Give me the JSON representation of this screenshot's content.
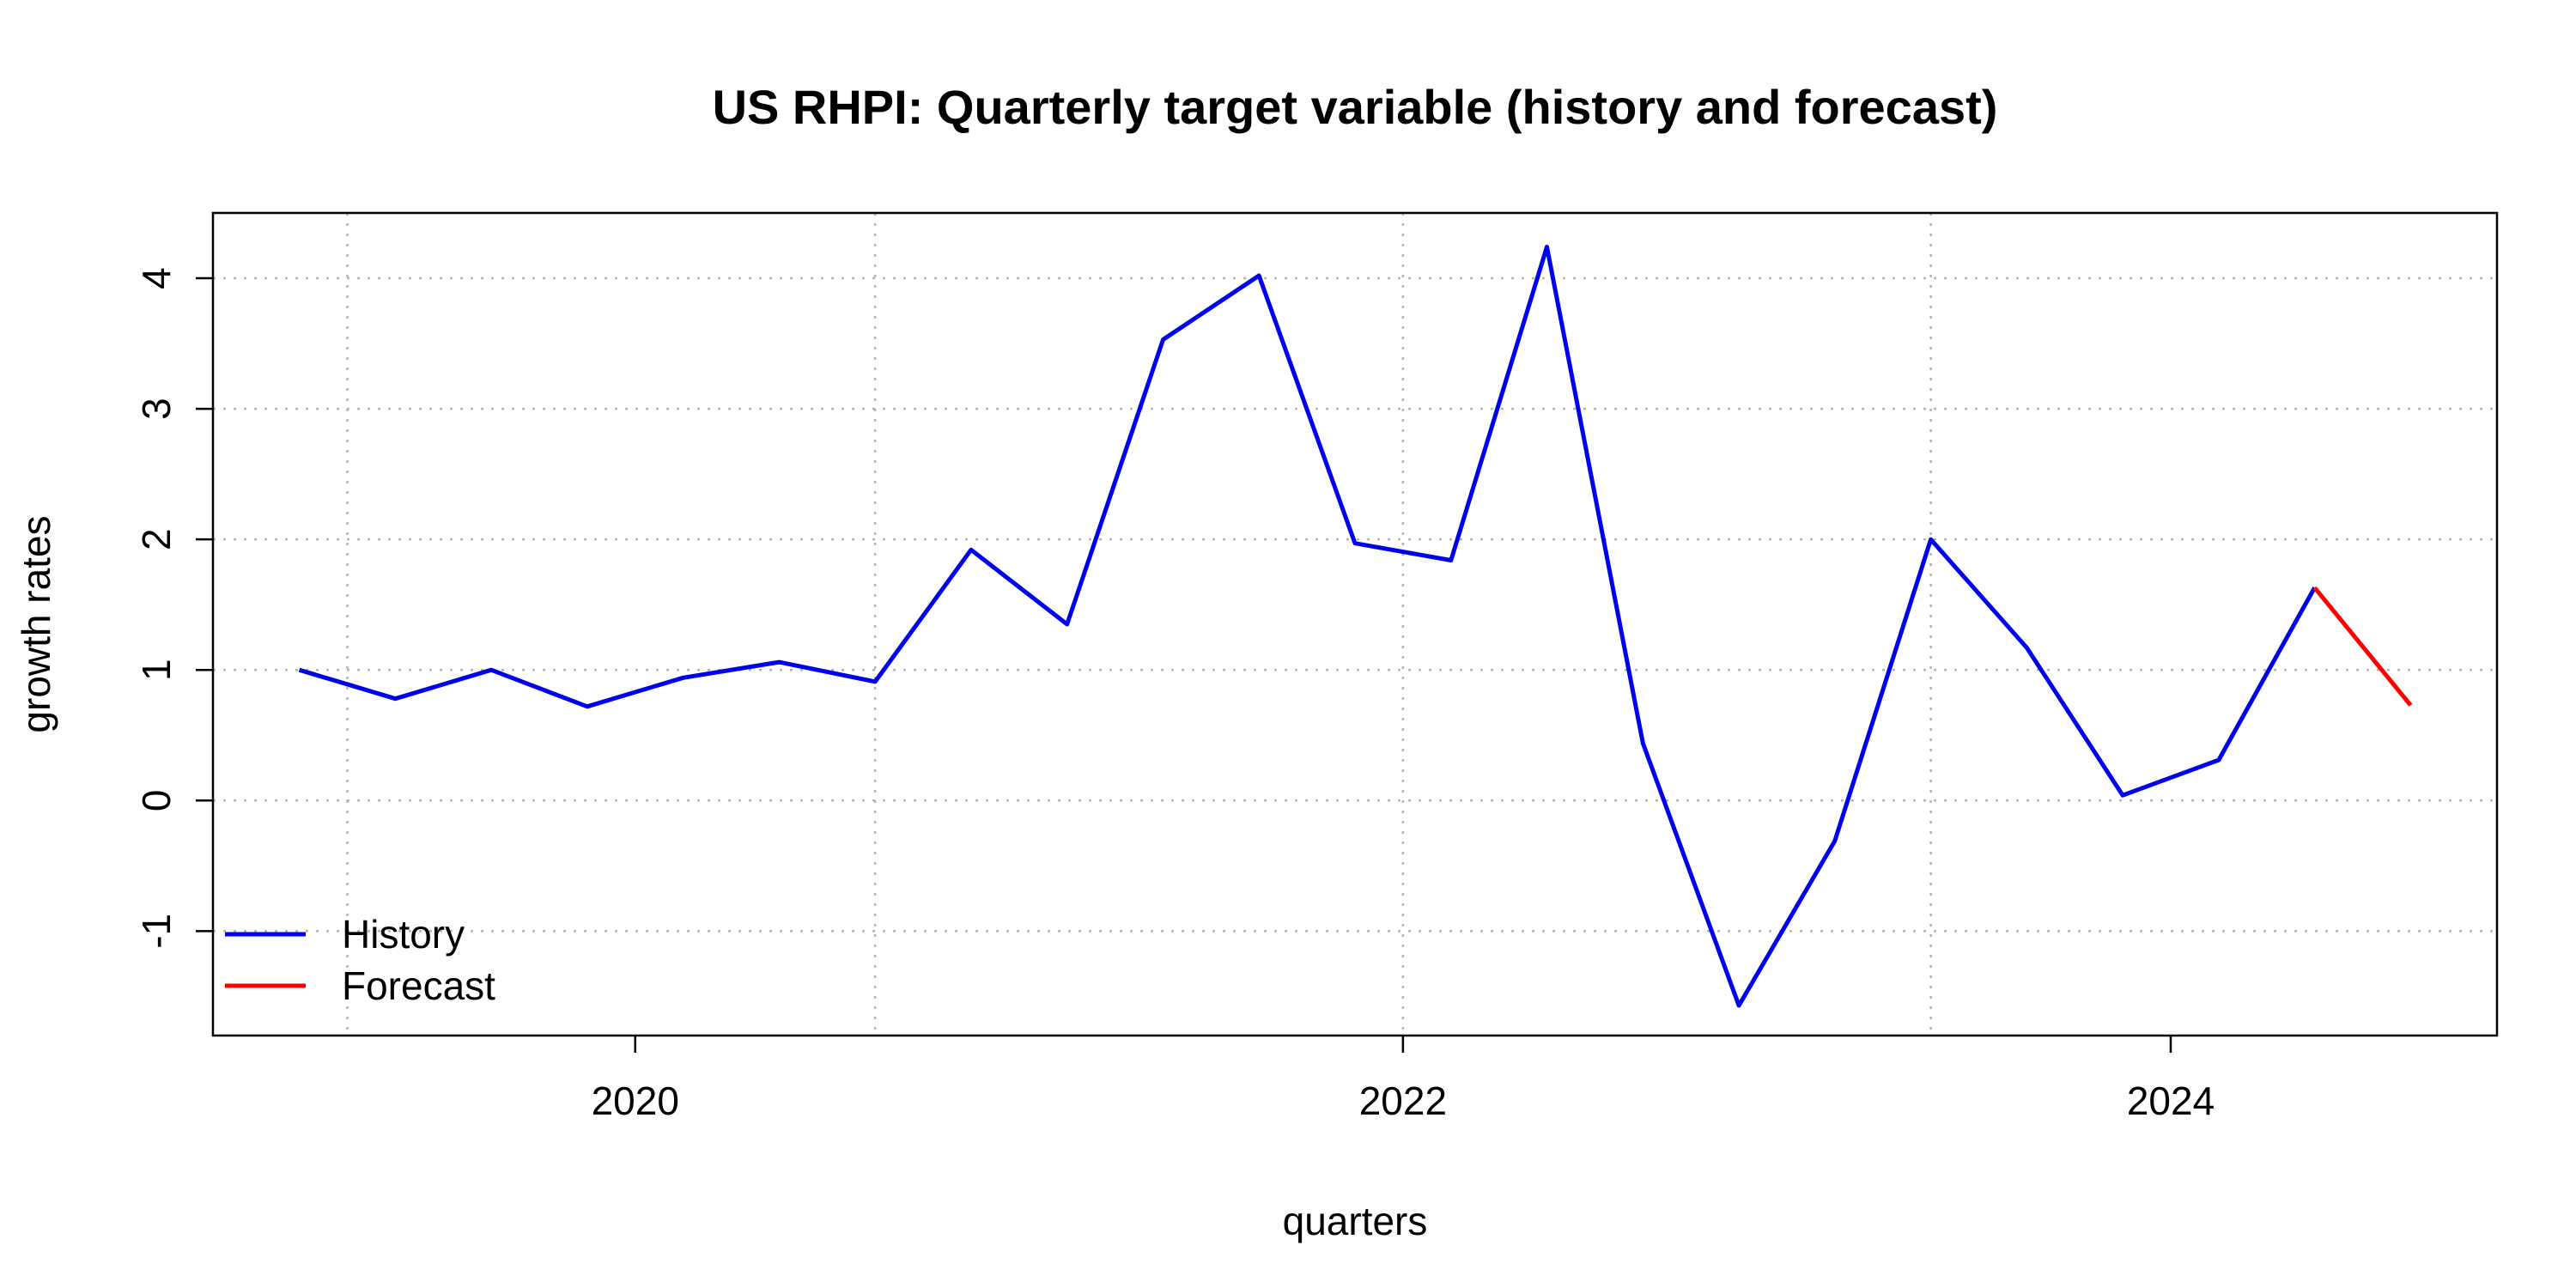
{
  "chart_data": {
    "type": "line",
    "title": "US RHPI: Quarterly target variable (history and forecast)",
    "xlabel": "quarters",
    "ylabel": "growth rates",
    "xlim": [
      2018.9,
      2024.85
    ],
    "ylim": [
      -1.8,
      4.5
    ],
    "x_ticks": [
      2020,
      2022,
      2024
    ],
    "x_tick_labels": [
      "2020",
      "2022",
      "2024"
    ],
    "y_ticks": [
      -1,
      0,
      1,
      2,
      3,
      4
    ],
    "y_tick_labels": [
      "-1",
      "0",
      "1",
      "2",
      "3",
      "4"
    ],
    "x_grid": [
      2019.25,
      2020.625,
      2022.0,
      2023.375
    ],
    "y_grid": [
      -1,
      0,
      1,
      2,
      3,
      4
    ],
    "grid": true,
    "legend_position": "bottom-left",
    "series": [
      {
        "name": "History",
        "color": "#0000ee",
        "x": [
          2019.125,
          2019.375,
          2019.625,
          2019.875,
          2020.125,
          2020.375,
          2020.625,
          2020.875,
          2021.125,
          2021.375,
          2021.625,
          2021.875,
          2022.125,
          2022.375,
          2022.625,
          2022.875,
          2023.125,
          2023.375,
          2023.625,
          2023.875,
          2024.125,
          2024.375
        ],
        "values": [
          1.0,
          0.78,
          1.0,
          0.72,
          0.94,
          1.06,
          0.91,
          1.92,
          1.35,
          3.53,
          4.02,
          1.97,
          1.84,
          4.24,
          0.44,
          -1.57,
          -0.31,
          2.0,
          1.17,
          0.04,
          0.31,
          1.63
        ]
      },
      {
        "name": "Forecast",
        "color": "#ff0000",
        "x": [
          2024.375,
          2024.625
        ],
        "values": [
          1.63,
          0.73
        ]
      }
    ]
  }
}
